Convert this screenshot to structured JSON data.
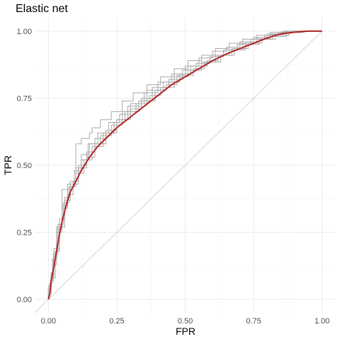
{
  "chart_data": {
    "type": "line",
    "title": "Elastic net",
    "xlabel": "FPR",
    "ylabel": "TPR",
    "xlim": [
      -0.05,
      1.05
    ],
    "ylim": [
      -0.05,
      1.05
    ],
    "x_ticks": [
      0.0,
      0.25,
      0.5,
      0.75,
      1.0
    ],
    "x_tick_labels": [
      "0.00",
      "0.25",
      "0.50",
      "0.75",
      "1.00"
    ],
    "y_ticks": [
      0.0,
      0.25,
      0.5,
      0.75,
      1.0
    ],
    "y_tick_labels": [
      "0.00",
      "0.25",
      "0.50",
      "0.75",
      "1.00"
    ],
    "grid": true,
    "legend": "none",
    "colors": {
      "mean": "#b22222",
      "resample": "#a9a9a9",
      "reference": "#d3d3d3"
    },
    "reference_line": {
      "x": [
        -0.05,
        1.0
      ],
      "y": [
        -0.05,
        1.0
      ]
    },
    "series": [
      {
        "role": "mean",
        "x": [
          0.0,
          0.005,
          0.01,
          0.02,
          0.03,
          0.04,
          0.05,
          0.06,
          0.07,
          0.08,
          0.1,
          0.12,
          0.15,
          0.18,
          0.2,
          0.25,
          0.3,
          0.35,
          0.4,
          0.45,
          0.5,
          0.55,
          0.6,
          0.65,
          0.7,
          0.75,
          0.8,
          0.85,
          0.9,
          0.95,
          1.0
        ],
        "y": [
          0.0,
          0.02,
          0.07,
          0.12,
          0.18,
          0.24,
          0.29,
          0.33,
          0.37,
          0.4,
          0.44,
          0.48,
          0.53,
          0.57,
          0.59,
          0.64,
          0.68,
          0.72,
          0.76,
          0.8,
          0.83,
          0.86,
          0.89,
          0.915,
          0.935,
          0.955,
          0.975,
          0.99,
          0.996,
          1.0,
          1.0
        ]
      },
      {
        "role": "resample",
        "x": [
          0.0,
          0.01,
          0.02,
          0.03,
          0.05,
          0.07,
          0.1,
          0.12,
          0.15,
          0.18,
          0.22,
          0.26,
          0.3,
          0.35,
          0.4,
          0.45,
          0.5,
          0.55,
          0.6,
          0.65,
          0.7,
          0.75,
          0.8,
          0.85,
          0.9,
          0.95,
          1.0
        ],
        "y": [
          0.0,
          0.05,
          0.1,
          0.16,
          0.27,
          0.35,
          0.43,
          0.49,
          0.54,
          0.58,
          0.62,
          0.66,
          0.69,
          0.73,
          0.77,
          0.81,
          0.84,
          0.87,
          0.9,
          0.925,
          0.94,
          0.96,
          0.977,
          0.99,
          0.997,
          1.0,
          1.0
        ]
      },
      {
        "role": "resample",
        "x": [
          0.0,
          0.01,
          0.02,
          0.04,
          0.06,
          0.08,
          0.1,
          0.13,
          0.16,
          0.2,
          0.24,
          0.28,
          0.32,
          0.36,
          0.42,
          0.48,
          0.52,
          0.58,
          0.62,
          0.68,
          0.72,
          0.78,
          0.82,
          0.88,
          0.92,
          0.97,
          1.0
        ],
        "y": [
          0.0,
          0.03,
          0.08,
          0.19,
          0.3,
          0.38,
          0.42,
          0.47,
          0.52,
          0.57,
          0.62,
          0.66,
          0.7,
          0.73,
          0.78,
          0.81,
          0.84,
          0.87,
          0.89,
          0.91,
          0.93,
          0.955,
          0.97,
          0.985,
          0.995,
          1.0,
          1.0
        ]
      },
      {
        "role": "resample",
        "x": [
          0.0,
          0.005,
          0.015,
          0.03,
          0.05,
          0.07,
          0.09,
          0.11,
          0.14,
          0.17,
          0.21,
          0.25,
          0.29,
          0.34,
          0.38,
          0.44,
          0.49,
          0.54,
          0.59,
          0.64,
          0.69,
          0.74,
          0.79,
          0.84,
          0.89,
          0.94,
          1.0
        ],
        "y": [
          0.0,
          0.01,
          0.06,
          0.15,
          0.25,
          0.34,
          0.39,
          0.44,
          0.5,
          0.55,
          0.6,
          0.63,
          0.67,
          0.72,
          0.75,
          0.79,
          0.82,
          0.855,
          0.88,
          0.905,
          0.93,
          0.95,
          0.97,
          0.985,
          0.996,
          1.0,
          1.0
        ]
      },
      {
        "role": "resample",
        "x": [
          0.0,
          0.01,
          0.02,
          0.03,
          0.05,
          0.08,
          0.1,
          0.12,
          0.15,
          0.16,
          0.19,
          0.23,
          0.27,
          0.31,
          0.36,
          0.41,
          0.46,
          0.51,
          0.56,
          0.61,
          0.66,
          0.71,
          0.76,
          0.81,
          0.86,
          0.91,
          0.96,
          1.0
        ],
        "y": [
          0.0,
          0.04,
          0.09,
          0.13,
          0.26,
          0.41,
          0.44,
          0.58,
          0.6,
          0.62,
          0.64,
          0.67,
          0.7,
          0.74,
          0.77,
          0.8,
          0.83,
          0.86,
          0.89,
          0.91,
          0.935,
          0.955,
          0.97,
          0.985,
          0.995,
          1.0,
          1.0,
          1.0
        ]
      },
      {
        "role": "resample",
        "x": [
          0.0,
          0.01,
          0.025,
          0.04,
          0.06,
          0.08,
          0.11,
          0.14,
          0.17,
          0.21,
          0.25,
          0.3,
          0.34,
          0.39,
          0.43,
          0.47,
          0.53,
          0.57,
          0.63,
          0.67,
          0.73,
          0.77,
          0.83,
          0.87,
          0.93,
          0.97,
          1.0
        ],
        "y": [
          0.0,
          0.02,
          0.08,
          0.18,
          0.27,
          0.37,
          0.43,
          0.49,
          0.53,
          0.58,
          0.62,
          0.67,
          0.71,
          0.74,
          0.78,
          0.8,
          0.835,
          0.86,
          0.885,
          0.91,
          0.935,
          0.95,
          0.97,
          0.98,
          0.995,
          1.0,
          1.0
        ]
      },
      {
        "role": "resample",
        "x": [
          0.0,
          0.008,
          0.018,
          0.035,
          0.055,
          0.075,
          0.095,
          0.12,
          0.145,
          0.19,
          0.23,
          0.27,
          0.33,
          0.37,
          0.41,
          0.46,
          0.51,
          0.56,
          0.61,
          0.66,
          0.71,
          0.76,
          0.81,
          0.86,
          0.91,
          0.96,
          1.0
        ],
        "y": [
          0.0,
          0.03,
          0.07,
          0.17,
          0.28,
          0.36,
          0.42,
          0.48,
          0.52,
          0.58,
          0.61,
          0.65,
          0.7,
          0.74,
          0.76,
          0.79,
          0.83,
          0.855,
          0.885,
          0.91,
          0.93,
          0.955,
          0.972,
          0.987,
          0.996,
          1.0,
          1.0
        ]
      }
    ]
  }
}
